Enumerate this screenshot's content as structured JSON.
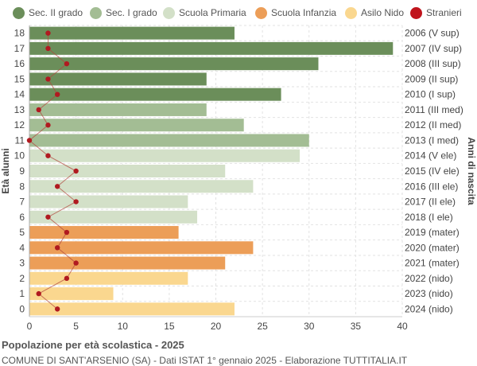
{
  "legend": [
    {
      "label": "Sec. II grado",
      "color": "#6b8e5a"
    },
    {
      "label": "Sec. I grado",
      "color": "#a3bd94"
    },
    {
      "label": "Scuola Primaria",
      "color": "#d3e0c8"
    },
    {
      "label": "Scuola Infanzia",
      "color": "#ec9e58"
    },
    {
      "label": "Asilo Nido",
      "color": "#fad78f"
    },
    {
      "label": "Stranieri",
      "color": "#c0141c"
    }
  ],
  "footer": {
    "title": "Popolazione per età scolastica - 2025",
    "subtitle": "COMUNE DI SANT'ARSENIO (SA) - Dati ISTAT 1° gennaio 2025 - Elaborazione TUTTITALIA.IT"
  },
  "chart_data": {
    "type": "bar",
    "orientation": "horizontal",
    "ylabel": "Età alunni",
    "ylabel_right": "Anni di nascita",
    "xlim": [
      0,
      40
    ],
    "x_ticks": [
      0,
      5,
      10,
      15,
      20,
      25,
      30,
      35,
      40
    ],
    "grid": true,
    "legend_position": "top",
    "categories": [
      "18",
      "17",
      "16",
      "15",
      "14",
      "13",
      "12",
      "11",
      "10",
      "9",
      "8",
      "7",
      "6",
      "5",
      "4",
      "3",
      "2",
      "1",
      "0"
    ],
    "birth_years": [
      "2006 (V sup)",
      "2007 (IV sup)",
      "2008 (III sup)",
      "2009 (II sup)",
      "2010 (I sup)",
      "2011 (III med)",
      "2012 (II med)",
      "2013 (I med)",
      "2014 (V ele)",
      "2015 (IV ele)",
      "2016 (III ele)",
      "2017 (II ele)",
      "2018 (I ele)",
      "2019 (mater)",
      "2020 (mater)",
      "2021 (mater)",
      "2022 (nido)",
      "2023 (nido)",
      "2024 (nido)"
    ],
    "values": [
      22,
      39,
      31,
      19,
      27,
      19,
      23,
      30,
      29,
      21,
      24,
      17,
      18,
      16,
      24,
      21,
      17,
      9,
      22
    ],
    "bar_groups": [
      "Sec. II grado",
      "Sec. II grado",
      "Sec. II grado",
      "Sec. II grado",
      "Sec. II grado",
      "Sec. I grado",
      "Sec. I grado",
      "Sec. I grado",
      "Scuola Primaria",
      "Scuola Primaria",
      "Scuola Primaria",
      "Scuola Primaria",
      "Scuola Primaria",
      "Scuola Infanzia",
      "Scuola Infanzia",
      "Scuola Infanzia",
      "Asilo Nido",
      "Asilo Nido",
      "Asilo Nido"
    ],
    "stranieri": [
      2,
      2,
      4,
      2,
      3,
      1,
      2,
      0,
      2,
      5,
      3,
      5,
      2,
      4,
      3,
      5,
      4,
      1,
      3
    ]
  }
}
